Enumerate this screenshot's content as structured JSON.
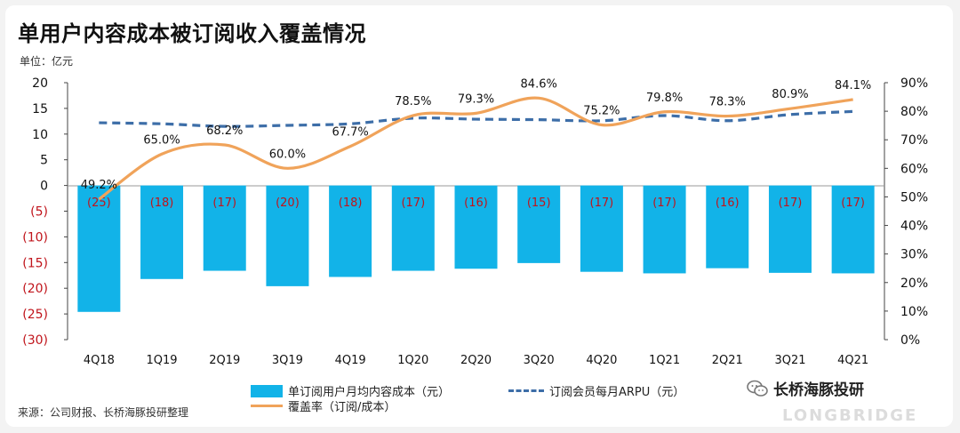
{
  "title": "单用户内容成本被订阅收入覆盖情况",
  "unit": "单位：亿元",
  "source": "来源：公司财报、长桥海豚投研整理",
  "brand": "长桥海豚投研",
  "brand_sub": "LONGBRIDGE",
  "chart_data": {
    "type": "bar",
    "categories": [
      "4Q18",
      "1Q19",
      "2Q19",
      "3Q19",
      "4Q19",
      "1Q20",
      "2Q20",
      "3Q20",
      "4Q20",
      "1Q21",
      "2Q21",
      "3Q21",
      "4Q21"
    ],
    "left_axis": {
      "ylim": [
        -30,
        20
      ],
      "ticks": [
        20,
        15,
        10,
        5,
        0,
        -5,
        -10,
        -15,
        -20,
        -25,
        -30
      ],
      "tick_labels": [
        "20",
        "15",
        "10",
        "5",
        "0",
        "(5)",
        "(10)",
        "(15)",
        "(20)",
        "(25)",
        "(30)"
      ]
    },
    "right_axis": {
      "ylim": [
        0,
        90
      ],
      "ticks": [
        90,
        80,
        70,
        60,
        50,
        40,
        30,
        20,
        10,
        0
      ],
      "tick_labels": [
        "90%",
        "80%",
        "70%",
        "60%",
        "50%",
        "40%",
        "30%",
        "20%",
        "10%",
        "0%"
      ]
    },
    "series": [
      {
        "name": "单订阅用户月均内容成本（元）",
        "kind": "bar",
        "axis": "left",
        "color": "#12b3e8",
        "values": [
          -24.6,
          -18.2,
          -16.6,
          -19.6,
          -17.8,
          -16.6,
          -16.2,
          -15.1,
          -16.8,
          -17.1,
          -16.1,
          -17.0,
          -17.1
        ],
        "labels": [
          "(25)",
          "(18)",
          "(17)",
          "(20)",
          "(18)",
          "(17)",
          "(16)",
          "(15)",
          "(17)",
          "(17)",
          "(16)",
          "(17)",
          "(17)"
        ]
      },
      {
        "name": "覆盖率（订阅/成本）",
        "kind": "line",
        "axis": "right",
        "color": "#f0a35a",
        "values": [
          49.2,
          65.0,
          68.2,
          60.0,
          67.7,
          78.5,
          79.3,
          84.6,
          75.2,
          79.8,
          78.3,
          80.9,
          84.1
        ],
        "labels": [
          "49.2%",
          "65.0%",
          "68.2%",
          "60.0%",
          "67.7%",
          "78.5%",
          "79.3%",
          "84.6%",
          "75.2%",
          "79.8%",
          "78.3%",
          "80.9%",
          "84.1%"
        ]
      },
      {
        "name": "订阅会员每月ARPU（元）",
        "kind": "dashed-line",
        "axis": "left",
        "color": "#3d6ea8",
        "values": [
          12.2,
          12.0,
          11.5,
          11.7,
          12.0,
          13.1,
          12.9,
          12.8,
          12.6,
          13.6,
          12.6,
          13.8,
          14.4
        ]
      }
    ],
    "legend_position": "bottom",
    "grid": false
  }
}
